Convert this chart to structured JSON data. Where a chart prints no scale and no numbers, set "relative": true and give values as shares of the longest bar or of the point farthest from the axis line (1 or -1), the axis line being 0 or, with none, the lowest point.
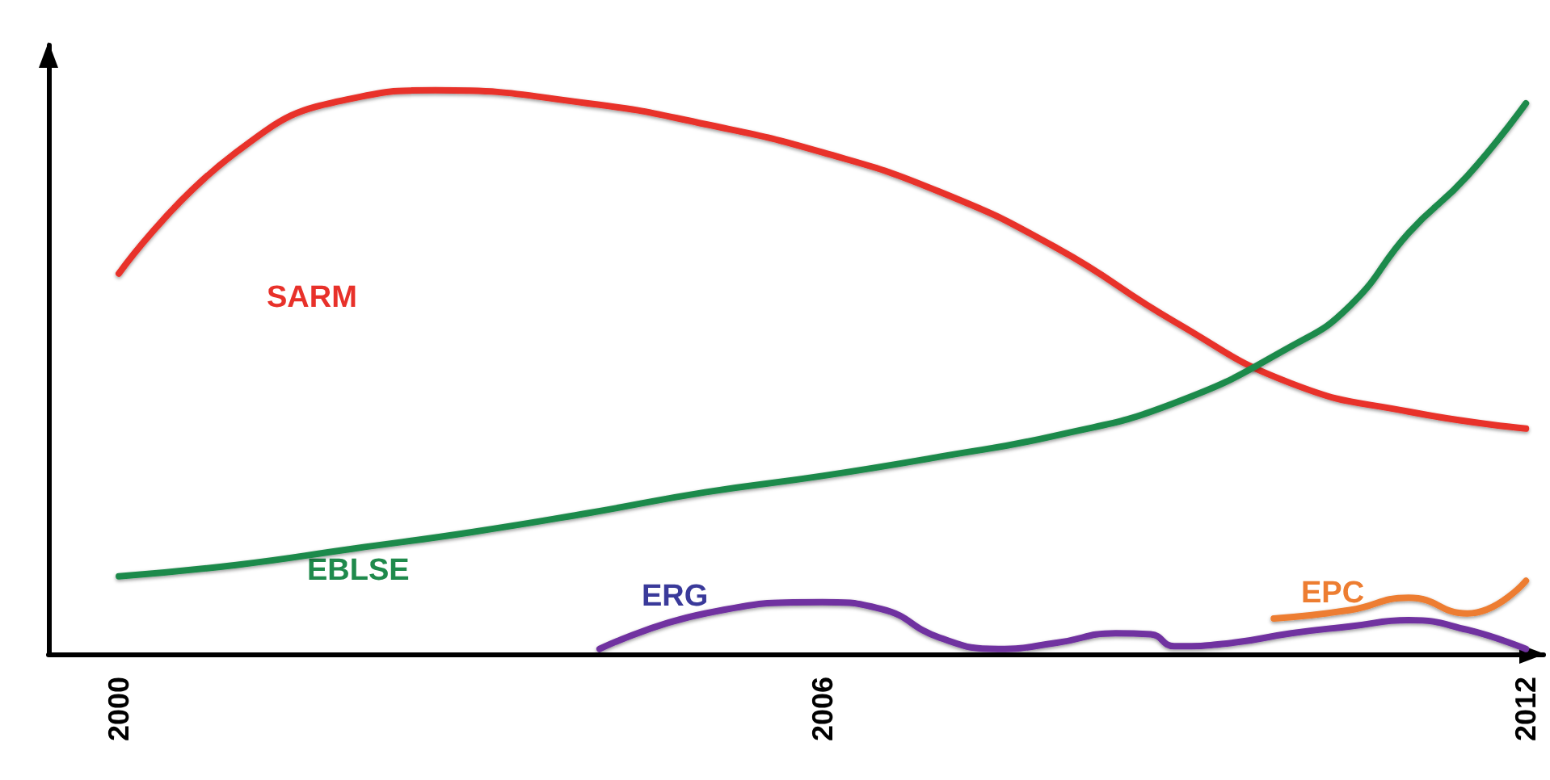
{
  "chart_data": {
    "type": "line",
    "relative": true,
    "xlim": [
      1999.4,
      2012.15
    ],
    "xticks": [
      2000,
      2006,
      2012
    ],
    "grid": false,
    "legend": false,
    "line_style": "solid",
    "series": [
      {
        "name": "SARM",
        "color": "#e8312a",
        "x": [
          2000,
          2001,
          2002,
          2002.7,
          2004,
          2005,
          2006,
          2007,
          2008,
          2009,
          2010,
          2011,
          2012
        ],
        "values": [
          0.675,
          0.89,
          0.986,
          1,
          0.977,
          0.94,
          0.89,
          0.82,
          0.72,
          0.59,
          0.48,
          0.43,
          0.4
        ]
      },
      {
        "name": "EBLSE",
        "color": "#1f8a4c",
        "x": [
          2000,
          2001,
          2002,
          2003,
          2004,
          2005,
          2006,
          2007,
          2008,
          2009,
          2010,
          2010.5,
          2011,
          2011.5,
          2012
        ],
        "values": [
          0.138,
          0.158,
          0.187,
          0.216,
          0.25,
          0.287,
          0.316,
          0.35,
          0.388,
          0.445,
          0.546,
          0.618,
          0.747,
          0.848,
          0.977
        ]
      },
      {
        "name": "ERG",
        "color": "#7030a0",
        "x": [
          2004.1,
          2005,
          2006,
          2006.5,
          2007,
          2007.5,
          2008,
          2008.5,
          2008.8,
          2009,
          2009.5,
          2010,
          2010.5,
          2011,
          2011.5,
          2012
        ],
        "values": [
          0.009,
          0.072,
          0.092,
          0.08,
          0.029,
          0.009,
          0.02,
          0.037,
          0.035,
          0.014,
          0.02,
          0.037,
          0.049,
          0.06,
          0.043,
          0.009
        ]
      },
      {
        "name": "EPC",
        "color": "#ed7d31",
        "x": [
          2009.85,
          2010.5,
          2011,
          2011.5,
          2012
        ],
        "values": [
          0.063,
          0.078,
          0.1,
          0.072,
          0.13
        ]
      }
    ]
  }
}
